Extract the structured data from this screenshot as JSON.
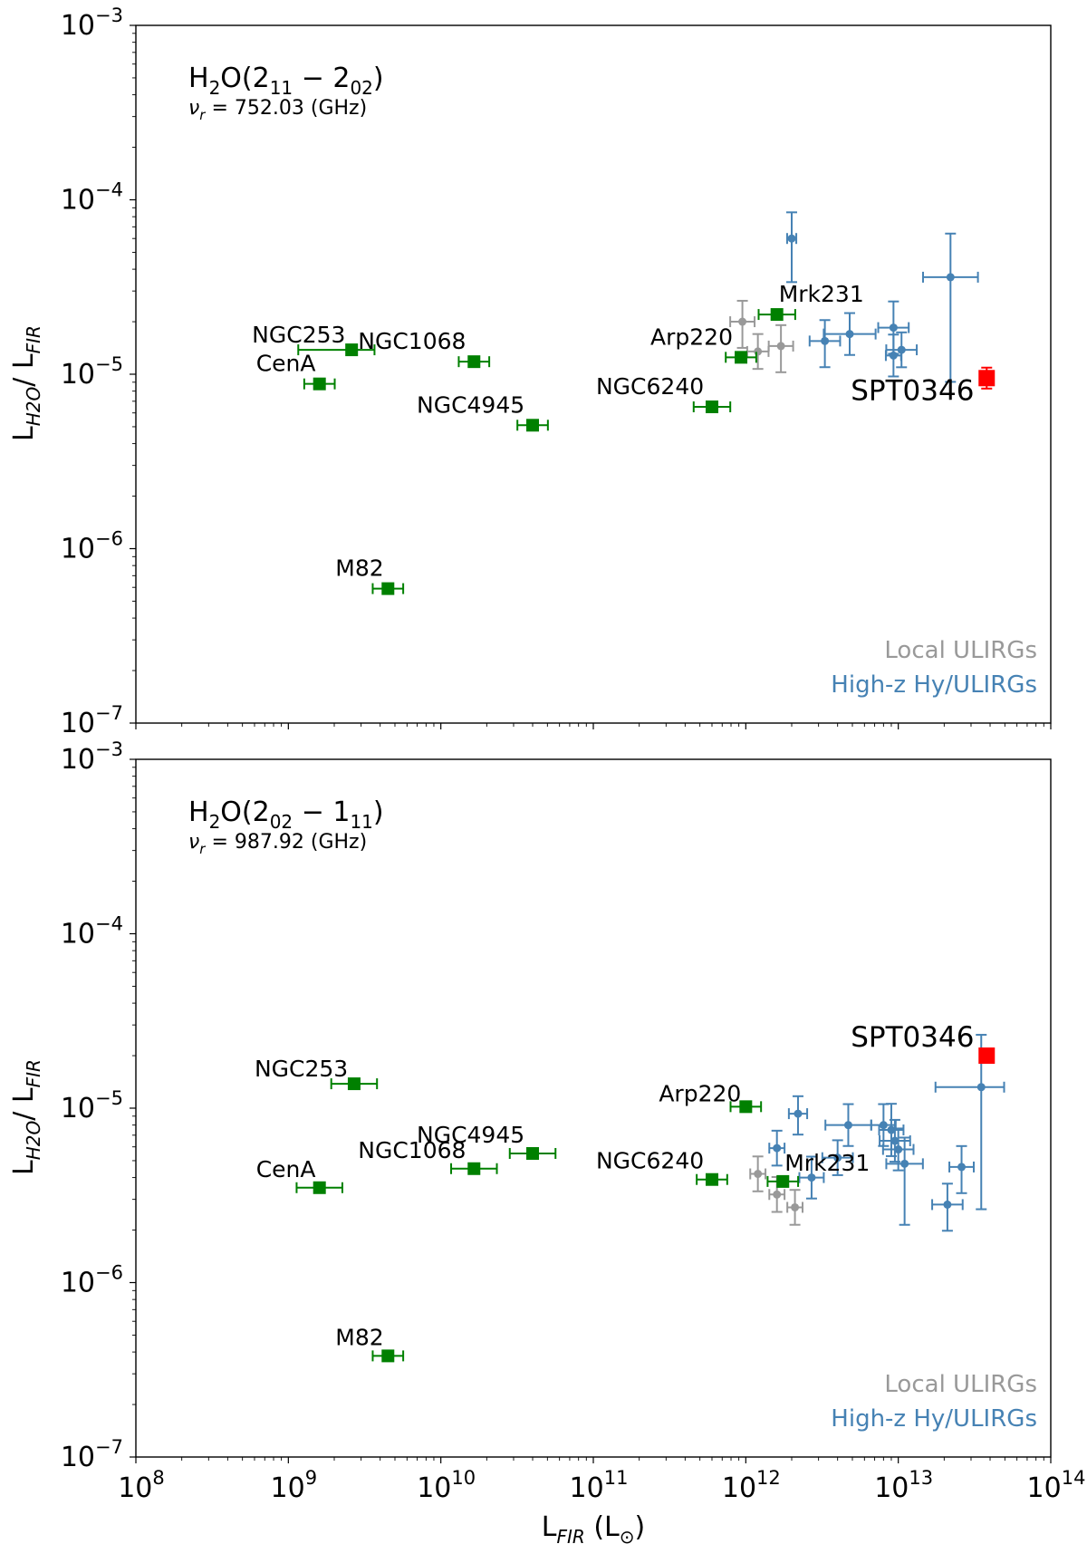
{
  "chart_data": [
    {
      "type": "scatter",
      "panel": "top",
      "title": "H2O(2_11 − 2_02)",
      "title_parts": {
        "base": "H",
        "sub1": "2",
        "mid": "O(2",
        "sub2": "11",
        "minus": " − 2",
        "sub3": "02",
        "end": ")"
      },
      "freq_label": {
        "nu": "ν",
        "sub": "r",
        "rest": " = 752.03 (GHz)"
      },
      "ylabel": {
        "a": "L",
        "a_sub": "H2O",
        "b": "/ L",
        "b_sub": "FIR"
      },
      "xlim": [
        100000000.0,
        100000000000000.0
      ],
      "ylim": [
        1e-07,
        0.001
      ],
      "xscale": "log",
      "yscale": "log",
      "legend": [
        {
          "label": "Local ULIRGs",
          "color": "#999999"
        },
        {
          "label": "High-z Hy/ULIRGs",
          "color": "#4682b4"
        }
      ],
      "named_sources": [
        {
          "name": "NGC253",
          "x": 2600000000.0,
          "y": 1.38e-05,
          "xerr": [
            0.35,
            0.15
          ],
          "label_dx": -110,
          "label_dy": -8
        },
        {
          "name": "NGC1068",
          "x": 16500000000.0,
          "y": 1.18e-05,
          "xerr": [
            0.1,
            0.1
          ],
          "label_dx": -128,
          "label_dy": -14
        },
        {
          "name": "CenA",
          "x": 1600000000.0,
          "y": 8.8e-06,
          "xerr": [
            0.1,
            0.1
          ],
          "label_dx": -70,
          "label_dy": -14
        },
        {
          "name": "NGC4945",
          "x": 40000000000.0,
          "y": 5.1e-06,
          "xerr": [
            0.1,
            0.1
          ],
          "label_dx": -128,
          "label_dy": -14
        },
        {
          "name": "M82",
          "x": 4500000000.0,
          "y": 5.9e-07,
          "xerr": [
            0.1,
            0.1
          ],
          "label_dx": -58,
          "label_dy": -14
        },
        {
          "name": "NGC6240",
          "x": 600000000000.0,
          "y": 6.5e-06,
          "xerr": [
            0.12,
            0.12
          ],
          "label_dx": -128,
          "label_dy": -14
        },
        {
          "name": "Arp220",
          "x": 930000000000.0,
          "y": 1.25e-05,
          "xerr": [
            0.1,
            0.1
          ],
          "label_dx": -100,
          "label_dy": -14
        },
        {
          "name": "Mrk231",
          "x": 1600000000000.0,
          "y": 2.2e-05,
          "xerr": [
            0.12,
            0.12
          ],
          "label_dx": 2,
          "label_dy": -14
        }
      ],
      "local_ulirgs": [
        {
          "x": 950000000000.0,
          "y": 2e-05,
          "xerr": [
            0.08,
            0.08
          ],
          "yerr": [
            0.15,
            0.12
          ]
        },
        {
          "x": 1200000000000.0,
          "y": 1.35e-05,
          "xerr": [
            0.07,
            0.07
          ],
          "yerr": [
            0.1,
            0.1
          ]
        },
        {
          "x": 1700000000000.0,
          "y": 1.45e-05,
          "xerr": [
            0.08,
            0.08
          ],
          "yerr": [
            0.15,
            0.12
          ]
        }
      ],
      "highz": [
        {
          "x": 2000000000000.0,
          "y": 6e-05,
          "xerr": [
            0.03,
            0.03
          ],
          "yerr": [
            0.25,
            0.15
          ]
        },
        {
          "x": 3300000000000.0,
          "y": 1.55e-05,
          "xerr": [
            0.1,
            0.1
          ],
          "yerr": [
            0.15,
            0.12
          ]
        },
        {
          "x": 4800000000000.0,
          "y": 1.7e-05,
          "xerr": [
            0.17,
            0.17
          ],
          "yerr": [
            0.12,
            0.12
          ]
        },
        {
          "x": 9300000000000.0,
          "y": 1.85e-05,
          "xerr": [
            0.1,
            0.1
          ],
          "yerr": [
            0.15,
            0.15
          ]
        },
        {
          "x": 9300000000000.0,
          "y": 1.28e-05,
          "xerr": [
            0.05,
            0.05
          ],
          "yerr": [
            0.12,
            0.12
          ]
        },
        {
          "x": 10500000000000.0,
          "y": 1.38e-05,
          "xerr": [
            0.1,
            0.1
          ],
          "yerr": [
            0.1,
            0.1
          ]
        },
        {
          "x": 22000000000000.0,
          "y": 3.6e-05,
          "xerr": [
            0.18,
            0.18
          ],
          "yerr": [
            0.6,
            0.25
          ]
        }
      ],
      "spt0346": {
        "name": "SPT0346",
        "x": 38000000000000.0,
        "y": 9.5e-06,
        "yerr": [
          0.06,
          0.06
        ],
        "label_dx": -150,
        "label_dy": 24
      }
    },
    {
      "type": "scatter",
      "panel": "bottom",
      "title": "H2O(2_02 − 1_11)",
      "title_parts": {
        "base": "H",
        "sub1": "2",
        "mid": "O(2",
        "sub2": "02",
        "minus": " − 1",
        "sub3": "11",
        "end": ")"
      },
      "freq_label": {
        "nu": "ν",
        "sub": "r",
        "rest": " = 987.92 (GHz)"
      },
      "ylabel": {
        "a": "L",
        "a_sub": "H2O",
        "b": "/ L",
        "b_sub": "FIR"
      },
      "xlabel": {
        "a": "L",
        "a_sub": "FIR",
        "b": " (L",
        "b_sub": "⊙",
        "c": ")"
      },
      "xlim": [
        100000000.0,
        100000000000000.0
      ],
      "ylim": [
        1e-07,
        0.001
      ],
      "xscale": "log",
      "yscale": "log",
      "x_tick_exponents": [
        "8",
        "9",
        "10",
        "11",
        "12",
        "13",
        "14"
      ],
      "legend": [
        {
          "label": "Local ULIRGs",
          "color": "#999999"
        },
        {
          "label": "High-z Hy/ULIRGs",
          "color": "#4682b4"
        }
      ],
      "named_sources": [
        {
          "name": "NGC253",
          "x": 2700000000.0,
          "y": 1.38e-05,
          "xerr": [
            0.15,
            0.15
          ],
          "label_dx": -110,
          "label_dy": -8
        },
        {
          "name": "Arp220",
          "x": 1000000000000.0,
          "y": 1.02e-05,
          "xerr": [
            0.1,
            0.1
          ],
          "label_dx": -96,
          "label_dy": -6
        },
        {
          "name": "NGC4945",
          "x": 40000000000.0,
          "y": 5.5e-06,
          "xerr": [
            0.15,
            0.15
          ],
          "label_dx": -128,
          "label_dy": -12
        },
        {
          "name": "NGC1068",
          "x": 16500000000.0,
          "y": 4.5e-06,
          "xerr": [
            0.15,
            0.15
          ],
          "label_dx": -128,
          "label_dy": -12
        },
        {
          "name": "CenA",
          "x": 1600000000.0,
          "y": 3.5e-06,
          "xerr": [
            0.15,
            0.15
          ],
          "label_dx": -70,
          "label_dy": -12
        },
        {
          "name": "NGC6240",
          "x": 600000000000.0,
          "y": 3.9e-06,
          "xerr": [
            0.1,
            0.1
          ],
          "label_dx": -128,
          "label_dy": -12
        },
        {
          "name": "Mrk231",
          "x": 1750000000000.0,
          "y": 3.8e-06,
          "xerr": [
            0.1,
            0.1
          ],
          "label_dx": 2,
          "label_dy": -12
        },
        {
          "name": "M82",
          "x": 4500000000.0,
          "y": 3.8e-07,
          "xerr": [
            0.1,
            0.1
          ],
          "label_dx": -58,
          "label_dy": -12
        }
      ],
      "local_ulirgs": [
        {
          "x": 1200000000000.0,
          "y": 4.2e-06,
          "xerr": [
            0.05,
            0.05
          ],
          "yerr": [
            0.1,
            0.1
          ]
        },
        {
          "x": 1600000000000.0,
          "y": 3.2e-06,
          "xerr": [
            0.05,
            0.05
          ],
          "yerr": [
            0.1,
            0.1
          ]
        },
        {
          "x": 2100000000000.0,
          "y": 2.7e-06,
          "xerr": [
            0.05,
            0.05
          ],
          "yerr": [
            0.1,
            0.1
          ]
        }
      ],
      "highz": [
        {
          "x": 1600000000000.0,
          "y": 5.9e-06,
          "xerr": [
            0.05,
            0.05
          ],
          "yerr": [
            0.1,
            0.1
          ]
        },
        {
          "x": 2200000000000.0,
          "y": 9.3e-06,
          "xerr": [
            0.06,
            0.06
          ],
          "yerr": [
            0.12,
            0.1
          ]
        },
        {
          "x": 2700000000000.0,
          "y": 4e-06,
          "xerr": [
            0.08,
            0.08
          ],
          "yerr": [
            0.12,
            0.12
          ]
        },
        {
          "x": 4000000000000.0,
          "y": 5.2e-06,
          "xerr": [
            0.1,
            0.1
          ],
          "yerr": [
            0.1,
            0.1
          ]
        },
        {
          "x": 4700000000000.0,
          "y": 8e-06,
          "xerr": [
            0.15,
            0.15
          ],
          "yerr": [
            0.12,
            0.12
          ]
        },
        {
          "x": 8000000000000.0,
          "y": 8e-06,
          "xerr": [
            0.08,
            0.08
          ],
          "yerr": [
            0.12,
            0.12
          ]
        },
        {
          "x": 9000000000000.0,
          "y": 7.5e-06,
          "xerr": [
            0.08,
            0.08
          ],
          "yerr": [
            0.15,
            0.15
          ]
        },
        {
          "x": 9500000000000.0,
          "y": 6.5e-06,
          "xerr": [
            0.1,
            0.1
          ],
          "yerr": [
            0.12,
            0.12
          ]
        },
        {
          "x": 10000000000000.0,
          "y": 5.8e-06,
          "xerr": [
            0.1,
            0.1
          ],
          "yerr": [
            0.12,
            0.12
          ]
        },
        {
          "x": 11000000000000.0,
          "y": 4.8e-06,
          "xerr": [
            0.12,
            0.12
          ],
          "yerr": [
            0.35,
            0.15
          ]
        },
        {
          "x": 21000000000000.0,
          "y": 2.8e-06,
          "xerr": [
            0.1,
            0.1
          ],
          "yerr": [
            0.15,
            0.12
          ]
        },
        {
          "x": 26000000000000.0,
          "y": 4.6e-06,
          "xerr": [
            0.08,
            0.08
          ],
          "yerr": [
            0.15,
            0.12
          ]
        },
        {
          "x": 35000000000000.0,
          "y": 1.32e-05,
          "xerr": [
            0.3,
            0.15
          ],
          "yerr": [
            0.7,
            0.3
          ]
        }
      ],
      "spt0346": {
        "name": "SPT0346",
        "x": 38000000000000.0,
        "y": 2e-05,
        "yerr": [
          0.04,
          0.04
        ],
        "label_dx": -150,
        "label_dy": -10
      }
    }
  ]
}
